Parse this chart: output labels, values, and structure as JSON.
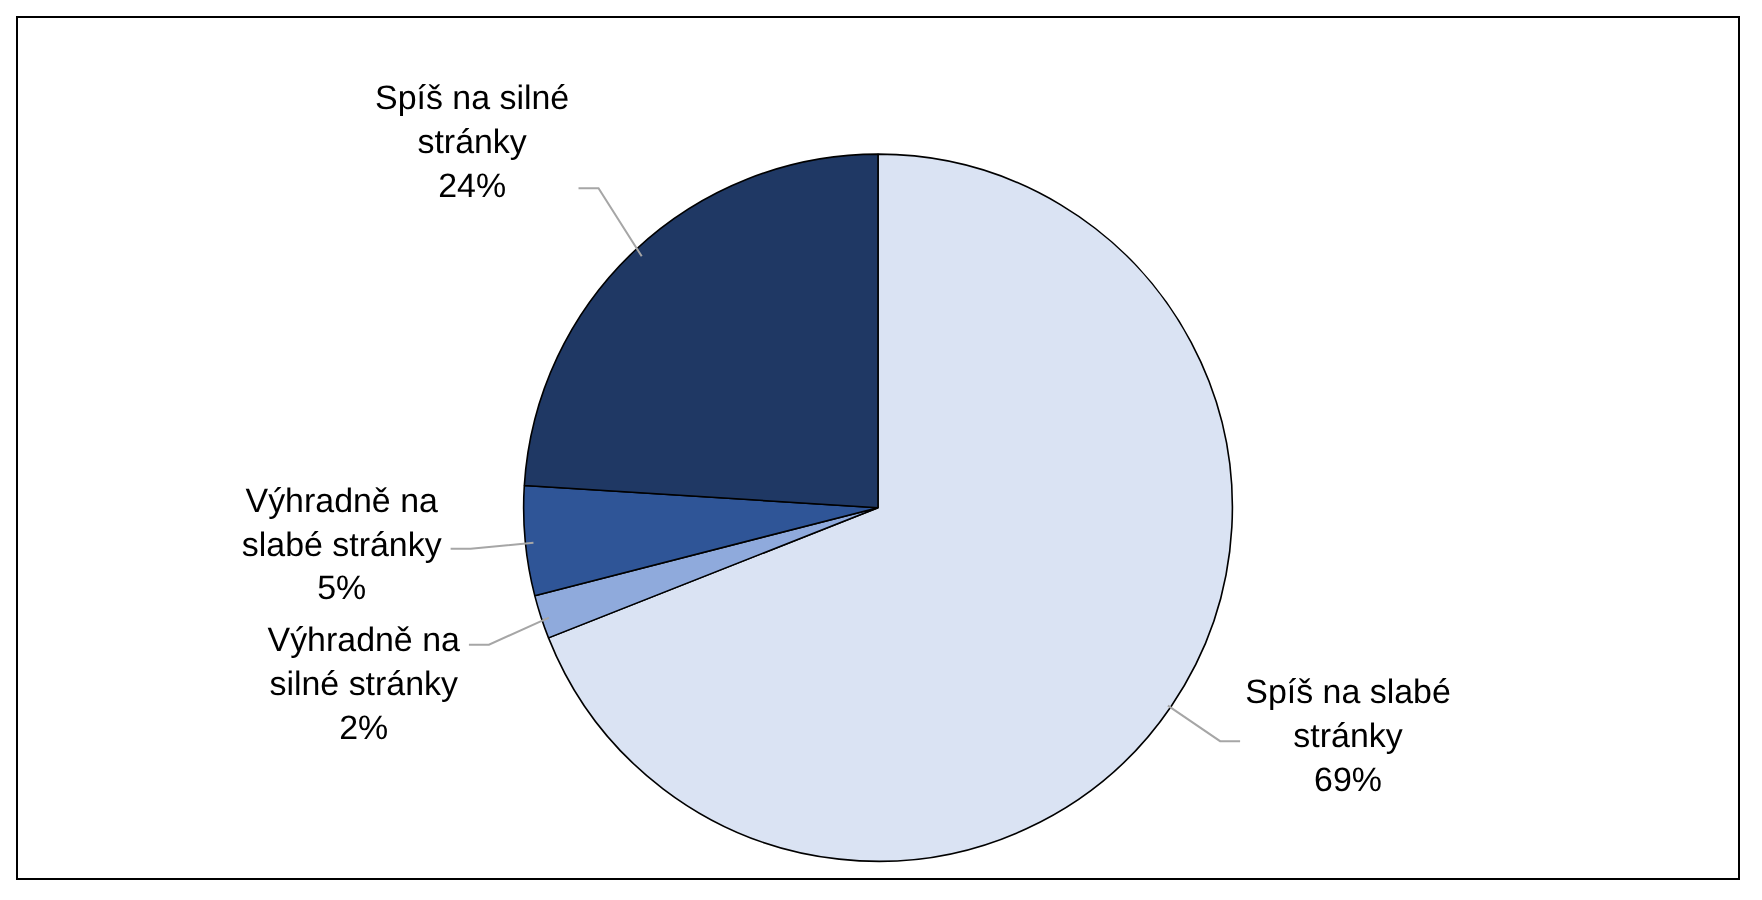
{
  "chart_data": {
    "type": "pie",
    "categories": [
      "Spíš na slabé stránky",
      "Výhradně na silné stránky",
      "Výhradně na slabé stránky",
      "Spíš na silné stránky"
    ],
    "values": [
      69,
      2,
      5,
      24
    ],
    "value_labels": [
      "69%",
      "2%",
      "5%",
      "24%"
    ],
    "colors": [
      "#dae3f3",
      "#8faadc",
      "#2f5597",
      "#1f3864"
    ]
  }
}
